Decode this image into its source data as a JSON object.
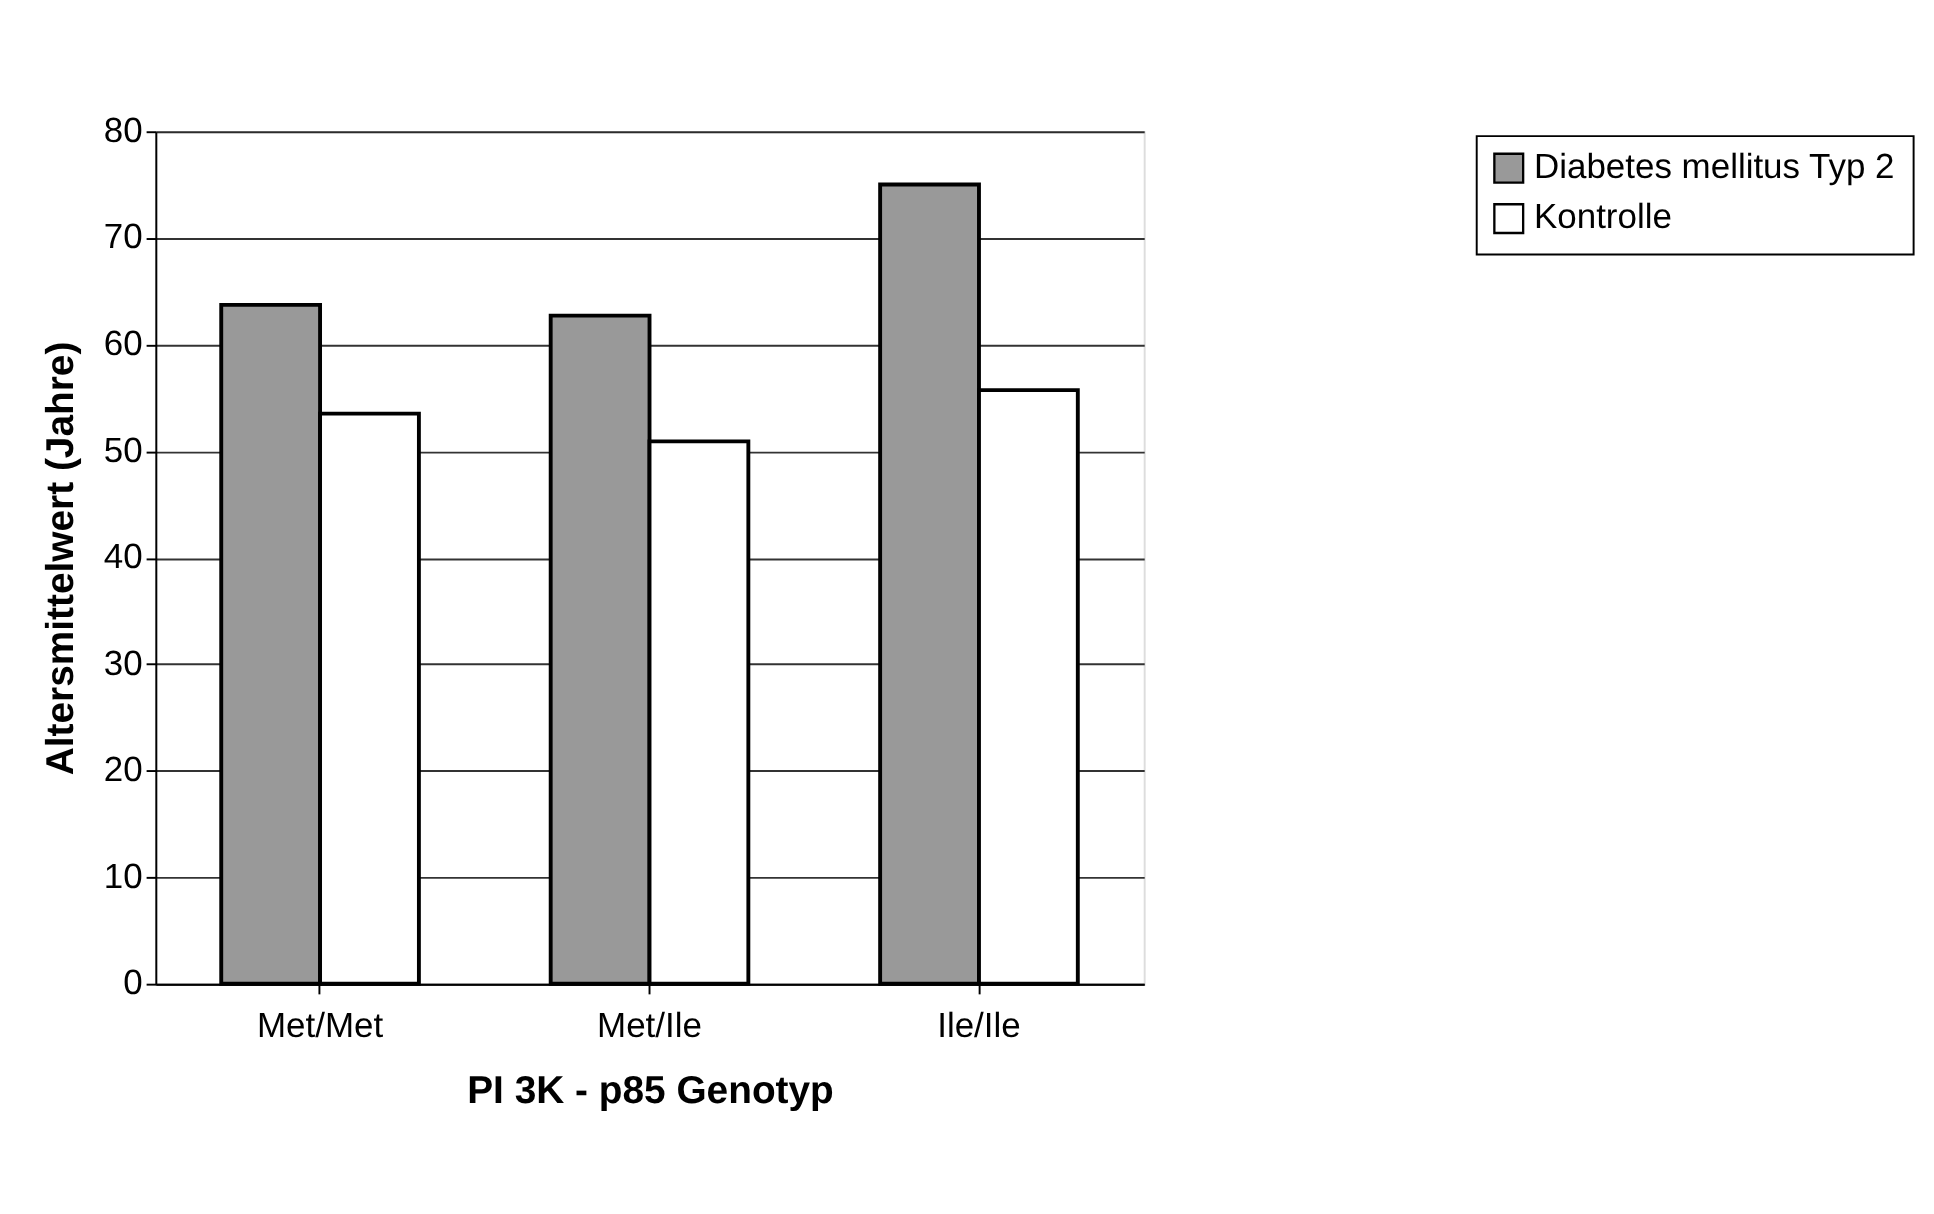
{
  "chart_data": {
    "type": "bar",
    "xlabel": "PI 3K - p85 Genotyp",
    "ylabel": "Altersmittelwert (Jahre)",
    "categories": [
      "Met/Met",
      "Met/Ile",
      "Ile/Ile"
    ],
    "series": [
      {
        "name": "Diabetes mellitus Typ 2",
        "color": "#999999",
        "values": [
          63.7,
          62.7,
          75.0
        ]
      },
      {
        "name": "Kontrolle",
        "color": "#ffffff",
        "values": [
          53.5,
          50.9,
          55.7
        ]
      }
    ],
    "ylim": [
      0,
      80
    ],
    "yticks": [
      0,
      10,
      20,
      30,
      40,
      50,
      60,
      70,
      80
    ],
    "grid": "y",
    "legend": "top right"
  }
}
